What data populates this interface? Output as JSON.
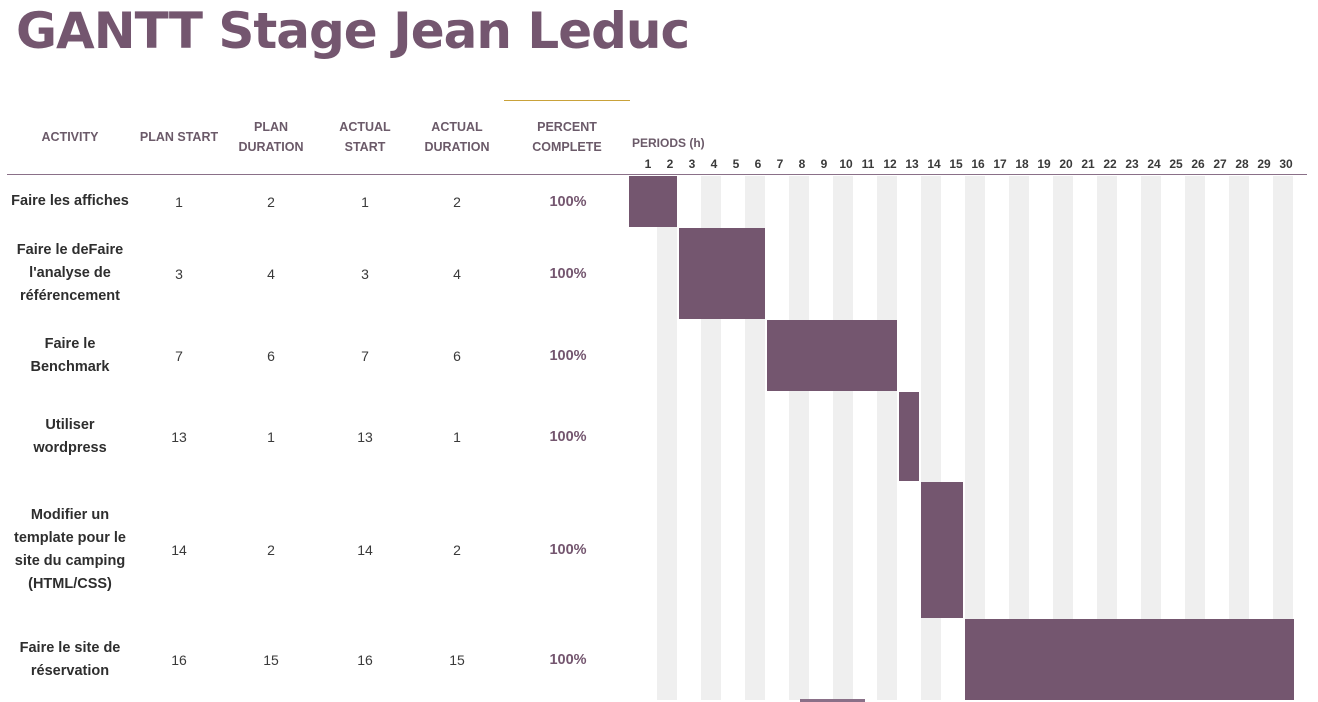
{
  "title": "GANTT Stage Jean Leduc",
  "headers": {
    "activity": "ACTIVITY",
    "plan_start": "PLAN START",
    "plan_duration": "PLAN\nDURATION",
    "actual_start": "ACTUAL\nSTART",
    "actual_duration": "ACTUAL\nDURATION",
    "percent_complete": "PERCENT\nCOMPLETE",
    "periods": "PERIODS (h)"
  },
  "periods": [
    "1",
    "2",
    "3",
    "4",
    "5",
    "6",
    "7",
    "8",
    "9",
    "10",
    "11",
    "12",
    "13",
    "14",
    "15",
    "16",
    "17",
    "18",
    "19",
    "20",
    "21",
    "22",
    "23",
    "24",
    "25",
    "26",
    "27",
    "28",
    "29",
    "30"
  ],
  "colors": {
    "accent": "#74566f",
    "stripe": "#efefef",
    "underline": "#c9a23a"
  },
  "activities": [
    {
      "activity": "Faire les affiches",
      "plan_start": "1",
      "plan_duration": "2",
      "actual_start": "1",
      "actual_duration": "2",
      "percent": "100%"
    },
    {
      "activity": "Faire le deFaire l'analyse de référencement",
      "plan_start": "3",
      "plan_duration": "4",
      "actual_start": "3",
      "actual_duration": "4",
      "percent": "100%"
    },
    {
      "activity": "Faire le Benchmark",
      "plan_start": "7",
      "plan_duration": "6",
      "actual_start": "7",
      "actual_duration": "6",
      "percent": "100%"
    },
    {
      "activity": "Utiliser wordpress",
      "plan_start": "13",
      "plan_duration": "1",
      "actual_start": "13",
      "actual_duration": "1",
      "percent": "100%"
    },
    {
      "activity": "Modifier un template pour le site du camping (HTML/CSS)",
      "plan_start": "14",
      "plan_duration": "2",
      "actual_start": "14",
      "actual_duration": "2",
      "percent": "100%"
    },
    {
      "activity": "Faire le site de réservation",
      "plan_start": "16",
      "plan_duration": "15",
      "actual_start": "16",
      "actual_duration": "15",
      "percent": "100%"
    }
  ]
}
